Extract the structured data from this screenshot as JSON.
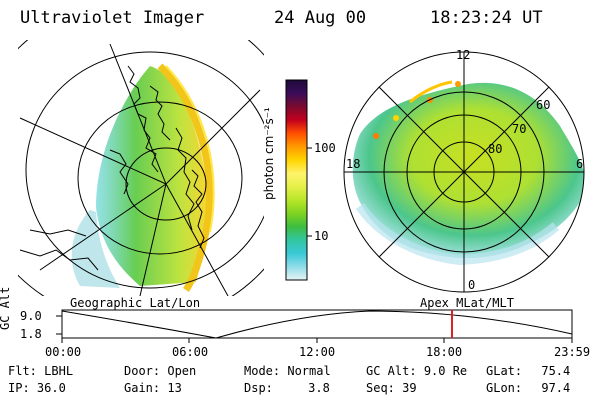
{
  "header": {
    "instrument": "Ultraviolet Imager",
    "date": "24 Aug 00",
    "time": "18:23:24 UT"
  },
  "colorbar": {
    "label": "photon cm⁻²s⁻¹",
    "ticks": [
      "100",
      "10"
    ],
    "stops": [
      "#1e0b3a",
      "#3b0c5a",
      "#7a0b2f",
      "#c4001e",
      "#ff4f00",
      "#ff9a00",
      "#ffd400",
      "#fff36a",
      "#e6f04a",
      "#b8e62a",
      "#7fd321",
      "#3fbd3f",
      "#32c6a0",
      "#3ac9d7",
      "#8fdce8",
      "#e8f4f6"
    ]
  },
  "polar_plot": {
    "mlt_labels": {
      "top": "12",
      "left": "18",
      "right": "6",
      "bottom": "0"
    },
    "lat_labels": [
      "60",
      "70",
      "80"
    ]
  },
  "left_map": {
    "label": "Geographic Lat/Lon"
  },
  "right_map_label": "Apex MLat/MLT",
  "gc_alt_chart": {
    "axis_label": "GC Alt",
    "y_ticks": [
      "9.0",
      "1.8"
    ],
    "x_ticks": [
      "00:00",
      "06:00",
      "12:00",
      "18:00",
      "23:59"
    ],
    "current_time_marker": "18:23:24",
    "marker_color": "#e02020"
  },
  "info": {
    "flt_label": "Flt:",
    "flt_value": "LBHL",
    "ip_label": "IP:",
    "ip_value": "36.0",
    "door_label": "Door:",
    "door_value": "Open",
    "gain_label": "Gain:",
    "gain_value": "13",
    "mode_label": "Mode:",
    "mode_value": "Normal",
    "dsp_label": "Dsp:",
    "dsp_value": "3.8",
    "gcalt_label": "GC Alt:",
    "gcalt_value": "9.0 Re",
    "seq_label": "Seq:",
    "seq_value": "39",
    "glat_label": "GLat:",
    "glat_value": "75.4",
    "glon_label": "GLon:",
    "glon_value": "97.4"
  }
}
